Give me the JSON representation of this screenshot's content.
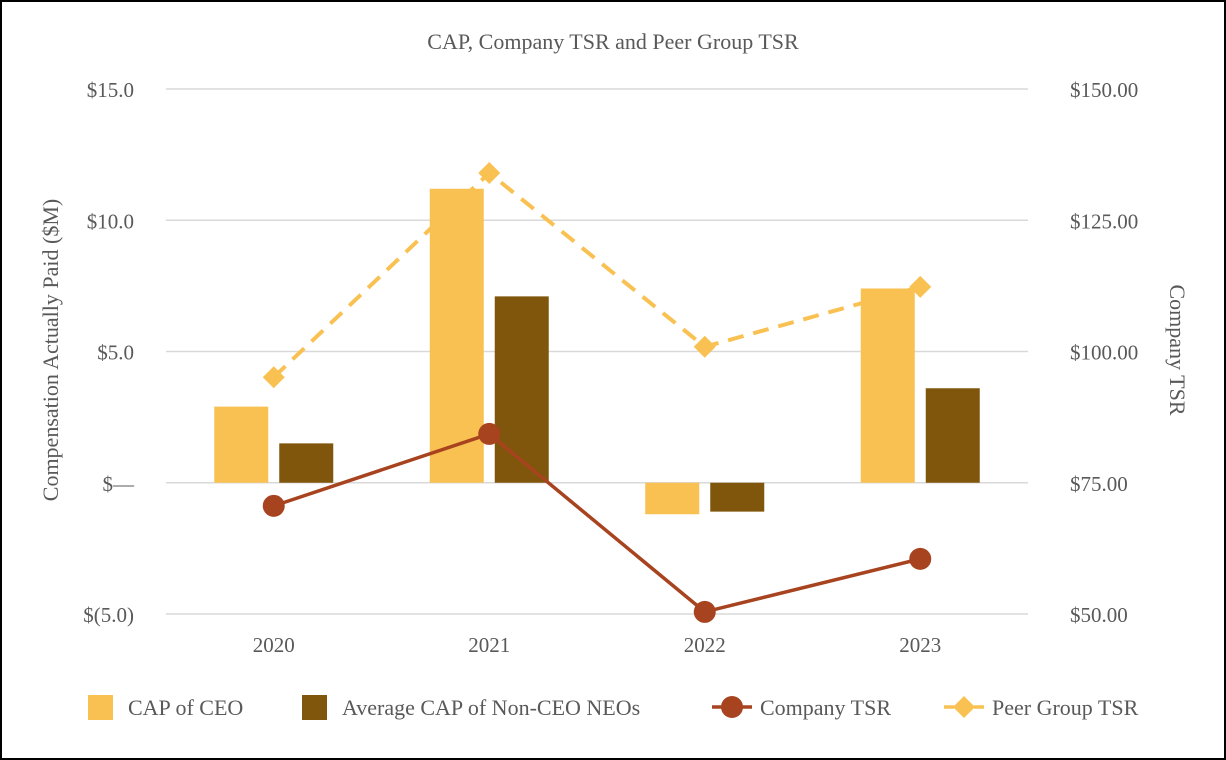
{
  "chart_data": {
    "type": "bar+line",
    "title": "CAP, Company TSR and Peer Group TSR",
    "categories": [
      "2020",
      "2021",
      "2022",
      "2023"
    ],
    "left_axis": {
      "label": "Compensation Actually Paid ($M)",
      "range": [
        -5,
        15
      ],
      "ticks": [
        15,
        10,
        5,
        0,
        -5
      ],
      "tick_labels": [
        "$15.0",
        "$10.0",
        "$5.0",
        "$—",
        "$(5.0)"
      ]
    },
    "right_axis": {
      "label": "Company TSR",
      "range": [
        50,
        150
      ],
      "ticks": [
        150,
        125,
        100,
        75,
        50
      ],
      "tick_labels": [
        "$150.00",
        "$125.00",
        "$100.00",
        "$75.00",
        "$50.00"
      ]
    },
    "grid": true,
    "legend_position": "bottom",
    "bar_series": [
      {
        "name": "CAP of CEO",
        "axis": "left",
        "color": "#F9C152",
        "values": [
          2.9,
          11.2,
          -1.2,
          7.4
        ]
      },
      {
        "name": "Average CAP of Non-CEO NEOs",
        "axis": "left",
        "color": "#7F560B",
        "values": [
          1.5,
          7.1,
          -1.1,
          3.6
        ]
      }
    ],
    "line_series": [
      {
        "name": "Company TSR",
        "axis": "right",
        "color": "#A8431F",
        "marker": "circle",
        "dashed": false,
        "values": [
          70.6,
          84.3,
          50.4,
          60.5
        ]
      },
      {
        "name": "Peer Group TSR",
        "axis": "right",
        "color": "#F9C152",
        "marker": "diamond",
        "dashed": true,
        "values": [
          95.1,
          134.0,
          100.9,
          112.3
        ]
      }
    ]
  }
}
